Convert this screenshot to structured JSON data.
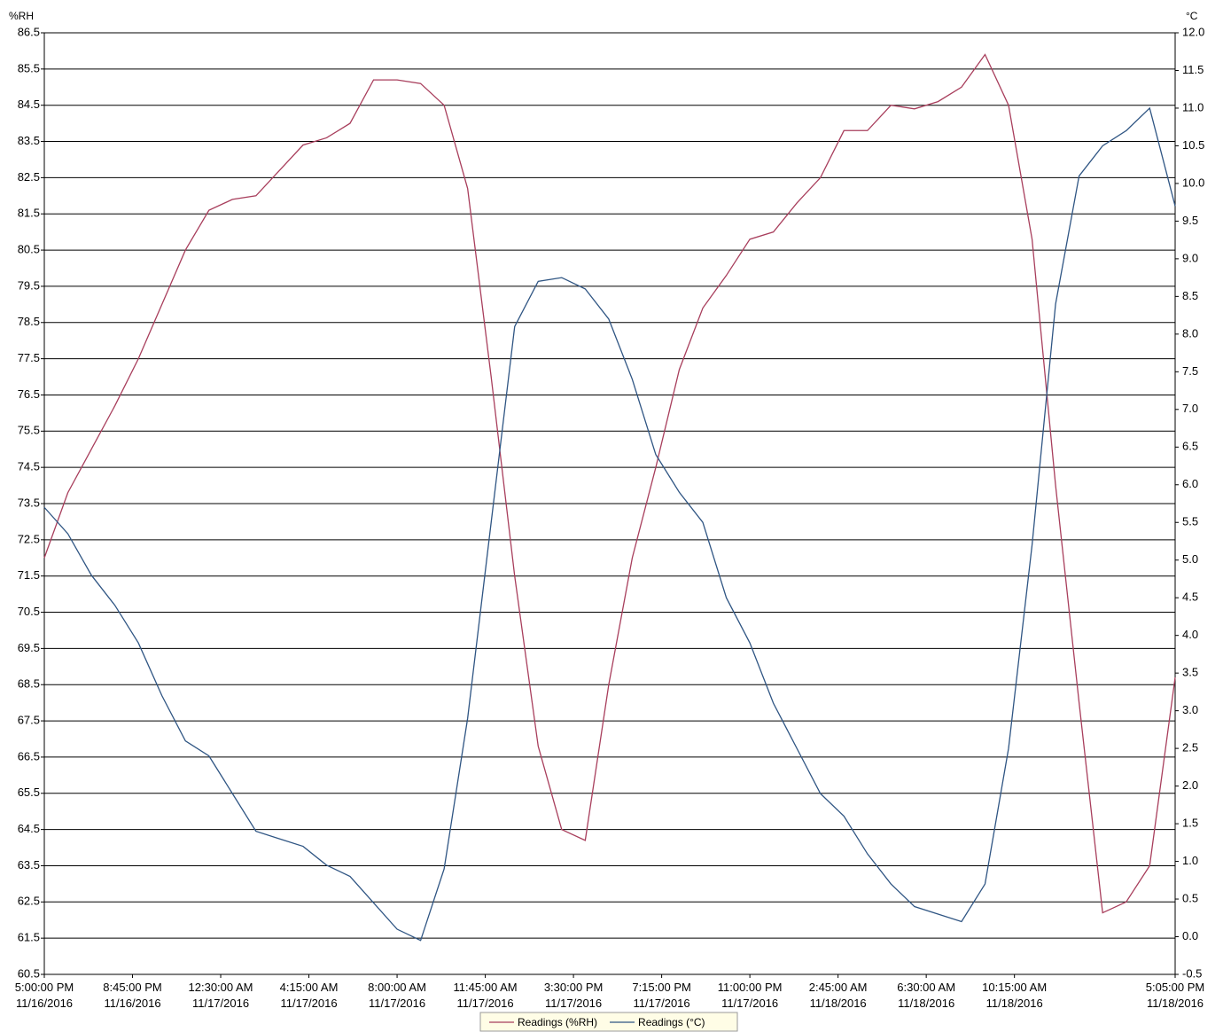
{
  "chart_data": {
    "type": "line",
    "y_label": "%RH",
    "y2_label": "°C",
    "x": [
      "2016-11-16T17:00",
      "2016-11-16T18:00",
      "2016-11-16T19:00",
      "2016-11-16T20:00",
      "2016-11-16T21:00",
      "2016-11-16T22:00",
      "2016-11-16T23:00",
      "2016-11-17T00:00",
      "2016-11-17T01:00",
      "2016-11-17T02:00",
      "2016-11-17T03:00",
      "2016-11-17T04:00",
      "2016-11-17T05:00",
      "2016-11-17T06:00",
      "2016-11-17T07:00",
      "2016-11-17T08:00",
      "2016-11-17T09:00",
      "2016-11-17T10:00",
      "2016-11-17T11:00",
      "2016-11-17T12:00",
      "2016-11-17T13:00",
      "2016-11-17T14:00",
      "2016-11-17T15:00",
      "2016-11-17T16:00",
      "2016-11-17T17:00",
      "2016-11-17T18:00",
      "2016-11-17T19:00",
      "2016-11-17T20:00",
      "2016-11-17T21:00",
      "2016-11-17T22:00",
      "2016-11-17T23:00",
      "2016-11-18T00:00",
      "2016-11-18T01:00",
      "2016-11-18T02:00",
      "2016-11-18T03:00",
      "2016-11-18T04:00",
      "2016-11-18T05:00",
      "2016-11-18T06:00",
      "2016-11-18T07:00",
      "2016-11-18T08:00",
      "2016-11-18T09:00",
      "2016-11-18T10:00",
      "2016-11-18T11:00",
      "2016-11-18T12:00",
      "2016-11-18T13:00",
      "2016-11-18T14:00",
      "2016-11-18T15:00",
      "2016-11-18T16:00",
      "2016-11-18T17:05"
    ],
    "series": [
      {
        "name": "Readings (%RH)",
        "color": "#a83e5c",
        "axis": "y",
        "values": [
          72.0,
          73.8,
          75.0,
          76.2,
          77.5,
          79.0,
          80.5,
          81.6,
          81.9,
          82.0,
          82.7,
          83.4,
          83.6,
          84.0,
          85.2,
          85.2,
          85.1,
          84.5,
          82.2,
          77.0,
          71.5,
          66.8,
          64.5,
          64.2,
          68.5,
          72.0,
          74.5,
          77.2,
          78.9,
          79.8,
          80.8,
          81.0,
          81.8,
          82.5,
          83.8,
          83.8,
          84.5,
          84.4,
          84.6,
          85.0,
          85.9,
          84.5,
          80.8,
          74.0,
          68.0,
          62.2,
          62.5,
          63.5,
          68.7
        ]
      },
      {
        "name": "Readings (°C)",
        "color": "#2f5583",
        "axis": "y2",
        "values": [
          5.7,
          5.35,
          4.8,
          4.4,
          3.9,
          3.2,
          2.6,
          2.4,
          1.9,
          1.4,
          1.3,
          1.2,
          0.95,
          0.8,
          0.45,
          0.1,
          -0.05,
          0.9,
          2.9,
          5.5,
          8.1,
          8.7,
          8.75,
          8.6,
          8.2,
          7.4,
          6.4,
          5.9,
          5.5,
          4.5,
          3.9,
          3.1,
          2.5,
          1.9,
          1.6,
          1.1,
          0.7,
          0.4,
          0.3,
          0.2,
          0.7,
          2.5,
          5.2,
          8.4,
          10.1,
          10.5,
          10.7,
          11.0,
          9.7
        ]
      }
    ],
    "xlim": [
      "2016-11-16T17:00",
      "2016-11-18T17:05"
    ],
    "xticks": [
      {
        "value": "2016-11-16T17:00",
        "label": "5:00:00 PM\n11/16/2016"
      },
      {
        "value": "2016-11-16T20:45",
        "label": "8:45:00 PM\n11/16/2016"
      },
      {
        "value": "2016-11-17T00:30",
        "label": "12:30:00 AM\n11/17/2016"
      },
      {
        "value": "2016-11-17T04:15",
        "label": "4:15:00 AM\n11/17/2016"
      },
      {
        "value": "2016-11-17T08:00",
        "label": "8:00:00 AM\n11/17/2016"
      },
      {
        "value": "2016-11-17T11:45",
        "label": "11:45:00 AM\n11/17/2016"
      },
      {
        "value": "2016-11-17T15:30",
        "label": "3:30:00 PM\n11/17/2016"
      },
      {
        "value": "2016-11-17T19:15",
        "label": "7:15:00 PM\n11/17/2016"
      },
      {
        "value": "2016-11-17T23:00",
        "label": "11:00:00 PM\n11/17/2016"
      },
      {
        "value": "2016-11-18T02:45",
        "label": "2:45:00 AM\n11/18/2016"
      },
      {
        "value": "2016-11-18T06:30",
        "label": "6:30:00 AM\n11/18/2016"
      },
      {
        "value": "2016-11-18T10:15",
        "label": "10:15:00 AM\n11/18/2016"
      },
      {
        "value": "2016-11-18T17:05",
        "label": "5:05:00 PM\n11/18/2016"
      }
    ],
    "ylim": [
      60.5,
      86.5
    ],
    "yticks": [
      60.5,
      61.5,
      62.5,
      63.5,
      64.5,
      65.5,
      66.5,
      67.5,
      68.5,
      69.5,
      70.5,
      71.5,
      72.5,
      73.5,
      74.5,
      75.5,
      76.5,
      77.5,
      78.5,
      79.5,
      80.5,
      81.5,
      82.5,
      83.5,
      84.5,
      85.5,
      86.5
    ],
    "y2lim": [
      -0.5,
      12.0
    ],
    "y2ticks": [
      -0.5,
      {
        "value": 0,
        "label": "0.0"
      },
      0.5,
      {
        "value": 1,
        "label": "1.0"
      },
      1.5,
      {
        "value": 2,
        "label": "2.0"
      },
      2.5,
      {
        "value": 3,
        "label": "3.0"
      },
      3.5,
      {
        "value": 4,
        "label": "4.0"
      },
      4.5,
      {
        "value": 5,
        "label": "5.0"
      },
      5.5,
      {
        "value": 6,
        "label": "6.0"
      },
      6.5,
      {
        "value": 7,
        "label": "7.0"
      },
      7.5,
      {
        "value": 8,
        "label": "8.0"
      },
      8.5,
      {
        "value": 9,
        "label": "9.0"
      },
      9.5,
      {
        "value": 10,
        "label": "10.0"
      },
      10.5,
      {
        "value": 11,
        "label": "11.0"
      },
      11.5,
      {
        "value": 12,
        "label": "12.0"
      }
    ],
    "grid": true,
    "legend": "bottom"
  }
}
